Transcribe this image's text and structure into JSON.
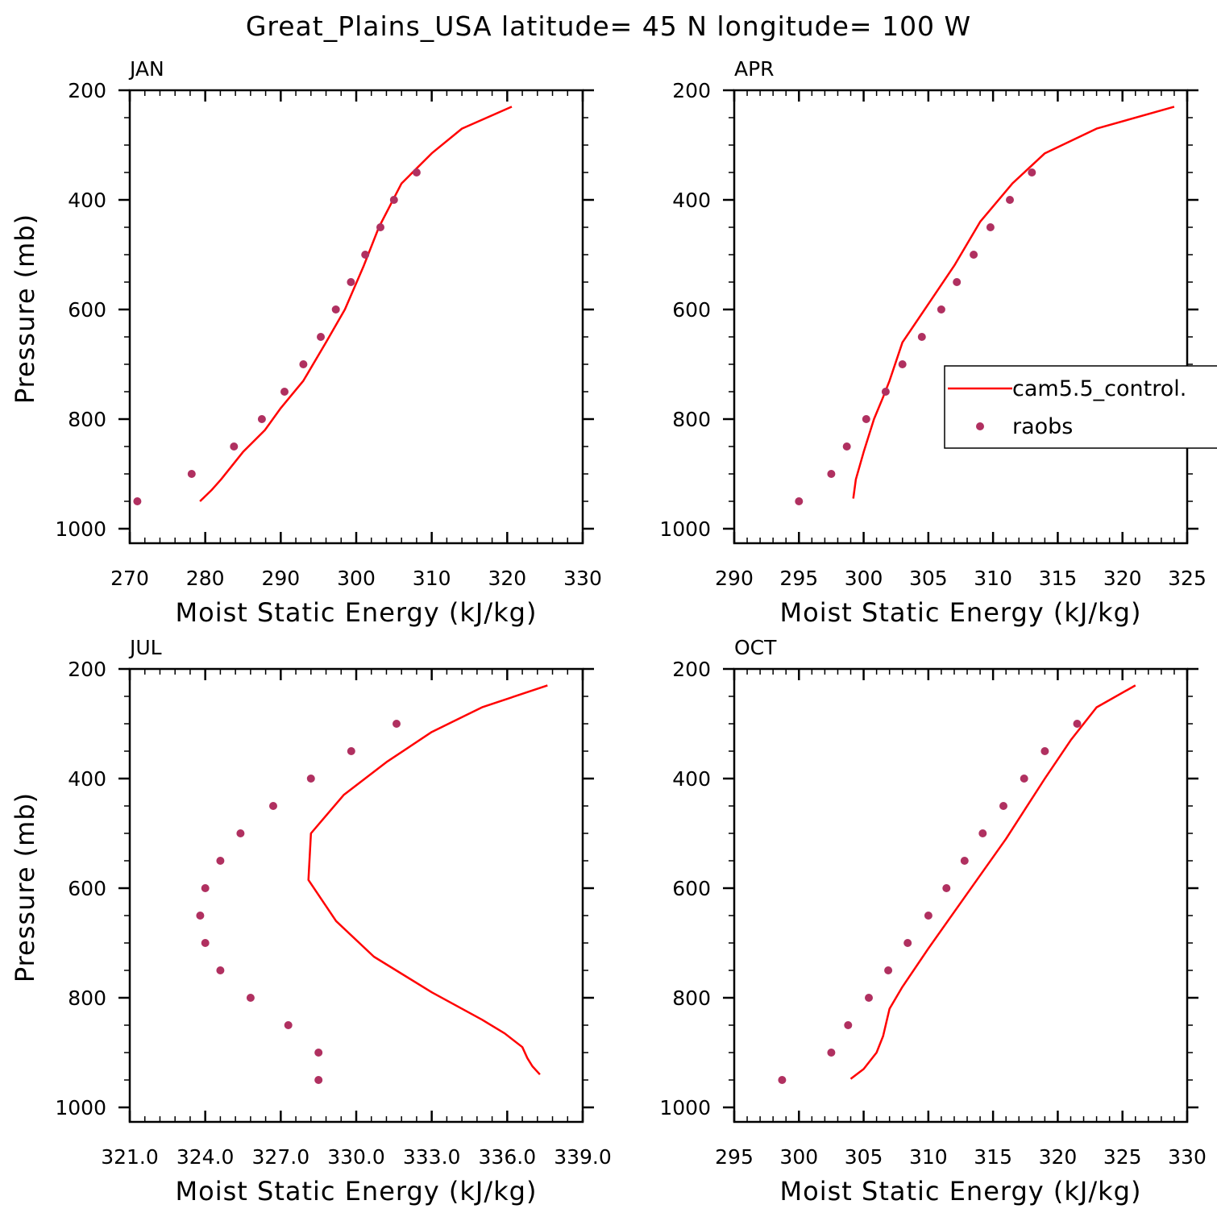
{
  "figure_title": "Great_Plains_USA  latitude= 45 N longitude= 100 W",
  "colors": {
    "model": "#ff0000",
    "obs": "#b03060",
    "axis": "#000000"
  },
  "legend": {
    "placement": "right-middle of APR panel",
    "model_label": "cam5.5_control.",
    "obs_label": "raobs"
  },
  "chart_data": [
    {
      "type": "line",
      "title": "JAN",
      "xlabel": "Moist Static Energy (kJ/kg)",
      "ylabel": "Pressure (mb)",
      "xlim": [
        270,
        330
      ],
      "ylim": [
        1000,
        200
      ],
      "xticks": [
        270,
        280,
        290,
        300,
        310,
        320,
        330
      ],
      "xtick_labels": [
        "270",
        "280",
        "290",
        "300",
        "310",
        "320",
        "330"
      ],
      "yticks": [
        200,
        400,
        600,
        800,
        1000
      ],
      "ytick_labels": [
        "200",
        "400",
        "600",
        "800",
        "1000"
      ],
      "series": [
        {
          "name": "cam5.5_control.",
          "kind": "line",
          "x": [
            279.3,
            280.8,
            282.1,
            285.0,
            287.9,
            290.0,
            293.0,
            296.0,
            298.5,
            301.0,
            303.0,
            306.0,
            310.0,
            314.0,
            320.6
          ],
          "y": [
            950,
            930,
            910,
            860,
            820,
            780,
            730,
            660,
            600,
            520,
            450,
            370,
            315,
            270,
            230
          ]
        },
        {
          "name": "raobs",
          "kind": "scatter",
          "x": [
            271.0,
            278.2,
            283.8,
            287.5,
            290.5,
            293.0,
            295.3,
            297.3,
            299.3,
            301.2,
            303.2,
            305.0,
            308.0
          ],
          "y": [
            950,
            900,
            850,
            800,
            750,
            700,
            650,
            600,
            550,
            500,
            450,
            400,
            350
          ]
        }
      ]
    },
    {
      "type": "line",
      "title": "APR",
      "xlabel": "Moist Static Energy (kJ/kg)",
      "ylabel": "",
      "xlim": [
        290,
        325
      ],
      "ylim": [
        1000,
        200
      ],
      "xticks": [
        290,
        295,
        300,
        305,
        310,
        315,
        320,
        325
      ],
      "xtick_labels": [
        "290",
        "295",
        "300",
        "305",
        "310",
        "315",
        "320",
        "325"
      ],
      "yticks": [
        200,
        400,
        600,
        800,
        1000
      ],
      "ytick_labels": [
        "200",
        "400",
        "600",
        "800",
        "1000"
      ],
      "series": [
        {
          "name": "cam5.5_control.",
          "kind": "line",
          "x": [
            299.2,
            299.4,
            300.0,
            300.8,
            301.5,
            302.0,
            303.0,
            305.0,
            307.0,
            309.0,
            311.5,
            314.0,
            318.0,
            324.0
          ],
          "y": [
            945,
            910,
            860,
            800,
            760,
            730,
            660,
            590,
            520,
            440,
            370,
            315,
            270,
            230
          ]
        },
        {
          "name": "raobs",
          "kind": "scatter",
          "x": [
            295.0,
            297.5,
            298.7,
            300.2,
            301.7,
            303.0,
            304.5,
            306.0,
            307.2,
            308.5,
            309.8,
            311.3,
            313.0
          ],
          "y": [
            950,
            900,
            850,
            800,
            750,
            700,
            650,
            600,
            550,
            500,
            450,
            400,
            350
          ]
        }
      ]
    },
    {
      "type": "line",
      "title": "JUL",
      "xlabel": "Moist Static Energy (kJ/kg)",
      "ylabel": "Pressure (mb)",
      "xlim": [
        321,
        339
      ],
      "ylim": [
        1000,
        200
      ],
      "xticks": [
        321,
        324,
        327,
        330,
        333,
        336,
        339
      ],
      "xtick_labels": [
        "321.0",
        "324.0",
        "327.0",
        "330.0",
        "333.0",
        "336.0",
        "339.0"
      ],
      "yticks": [
        200,
        400,
        600,
        800,
        1000
      ],
      "ytick_labels": [
        "200",
        "400",
        "600",
        "800",
        "1000"
      ],
      "series": [
        {
          "name": "cam5.5_control.",
          "kind": "line",
          "x": [
            337.3,
            337.0,
            336.8,
            336.6,
            335.9,
            335.0,
            333.0,
            330.7,
            329.2,
            328.1,
            328.2,
            329.5,
            331.2,
            333.0,
            335.0,
            337.6
          ],
          "y": [
            940,
            925,
            910,
            890,
            865,
            840,
            790,
            725,
            660,
            585,
            500,
            430,
            370,
            315,
            270,
            230
          ]
        },
        {
          "name": "raobs",
          "kind": "scatter",
          "x": [
            328.5,
            328.5,
            327.3,
            325.8,
            324.6,
            324.0,
            323.8,
            324.0,
            324.6,
            325.4,
            326.7,
            328.2,
            329.8,
            331.6
          ],
          "y": [
            950,
            900,
            850,
            800,
            750,
            700,
            650,
            600,
            550,
            500,
            450,
            400,
            350,
            300
          ]
        }
      ]
    },
    {
      "type": "line",
      "title": "OCT",
      "xlabel": "Moist Static Energy (kJ/kg)",
      "ylabel": "",
      "xlim": [
        295,
        330
      ],
      "ylim": [
        1000,
        200
      ],
      "xticks": [
        295,
        300,
        305,
        310,
        315,
        320,
        325,
        330
      ],
      "xtick_labels": [
        "295",
        "300",
        "305",
        "310",
        "315",
        "320",
        "325",
        "330"
      ],
      "yticks": [
        200,
        400,
        600,
        800,
        1000
      ],
      "ytick_labels": [
        "200",
        "400",
        "600",
        "800",
        "1000"
      ],
      "series": [
        {
          "name": "cam5.5_control.",
          "kind": "line",
          "x": [
            304.0,
            305.0,
            306.0,
            306.5,
            307.0,
            308.0,
            310.0,
            313.0,
            316.0,
            319.0,
            321.0,
            323.0,
            326.0
          ],
          "y": [
            948,
            930,
            900,
            870,
            820,
            780,
            710,
            610,
            510,
            400,
            330,
            270,
            230
          ]
        },
        {
          "name": "raobs",
          "kind": "scatter",
          "x": [
            298.7,
            302.5,
            303.8,
            305.4,
            306.9,
            308.4,
            310.0,
            311.4,
            312.8,
            314.2,
            315.8,
            317.4,
            319.0,
            321.5
          ],
          "y": [
            950,
            900,
            850,
            800,
            750,
            700,
            650,
            600,
            550,
            500,
            450,
            400,
            350,
            300
          ]
        }
      ]
    }
  ]
}
